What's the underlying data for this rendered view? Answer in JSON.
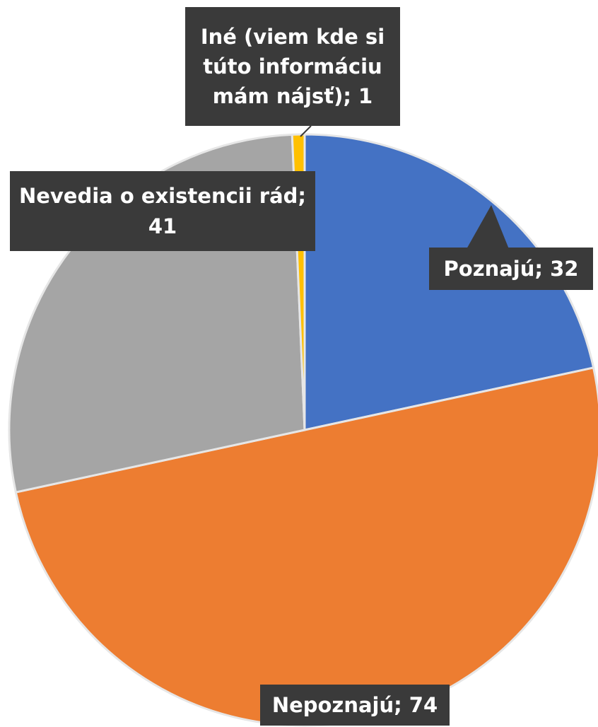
{
  "chart_data": {
    "type": "pie",
    "value_labels": [
      "Poznajú; 32",
      "Nepoznajú; 74",
      "Nevedia o existencii rád; 41",
      "Iné (viem kde si túto informáciu mám nájsť); 1"
    ],
    "values": [
      32,
      74,
      41,
      1
    ],
    "colors": [
      "#4472c4",
      "#ed7d31",
      "#a5a5a5",
      "#ffc000"
    ]
  }
}
